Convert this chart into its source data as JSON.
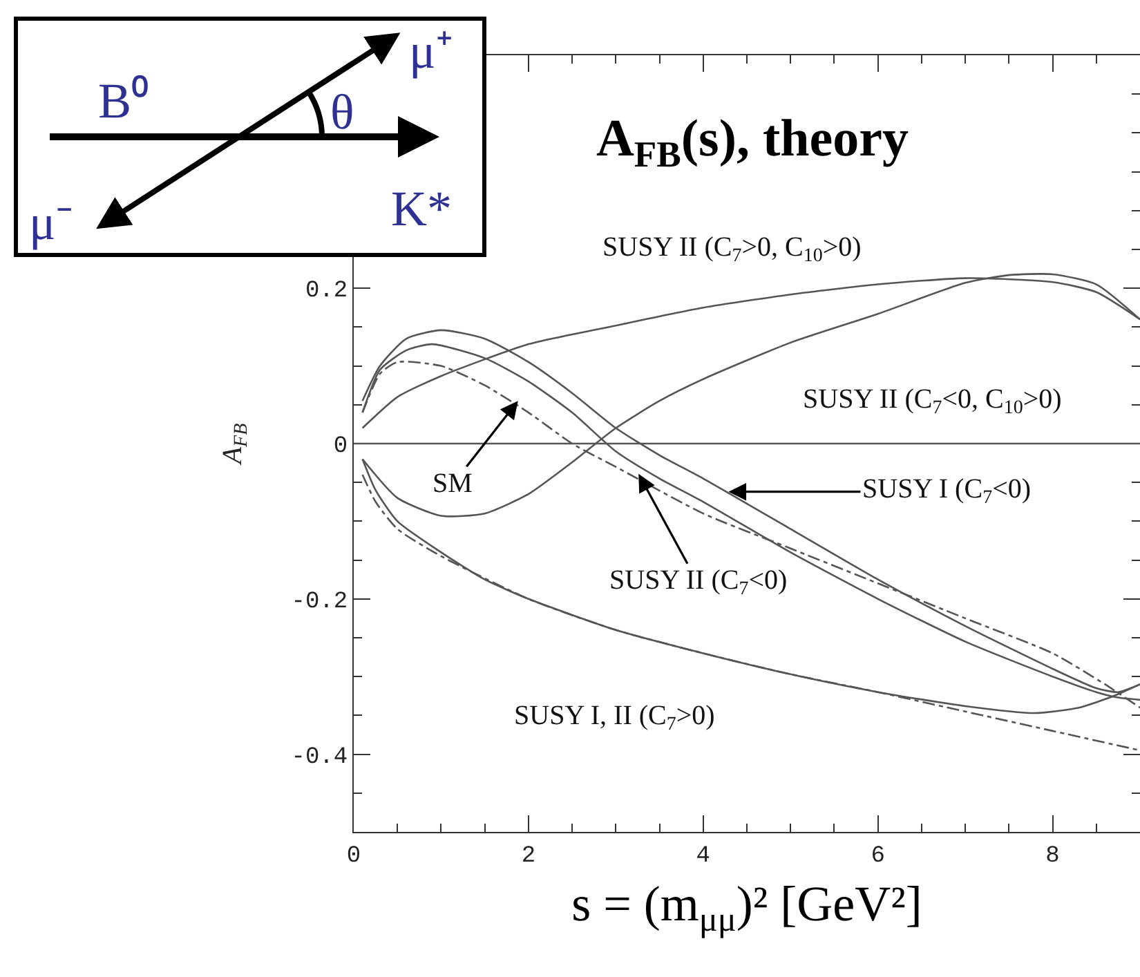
{
  "chart_data": {
    "type": "line",
    "title": "A$_{FB}$(s), theory",
    "xlabel": "s = (m$_{μμ}$)² [GeV²]",
    "ylabel": "A$_{FB}$",
    "xlim": [
      0,
      9
    ],
    "ylim": [
      -0.5,
      0.5
    ],
    "xticks": [
      0,
      {
        "value": 0.5,
        "label": null
      },
      {
        "value": 1,
        "label": null
      },
      {
        "value": 1.5,
        "label": null
      },
      2,
      {
        "value": 2.5,
        "label": null
      },
      {
        "value": 3,
        "label": null
      },
      {
        "value": 3.5,
        "label": null
      },
      4,
      {
        "value": 4.5,
        "label": null
      },
      {
        "value": 5,
        "label": null
      },
      {
        "value": 5.5,
        "label": null
      },
      6,
      {
        "value": 6.5,
        "label": null
      },
      {
        "value": 7,
        "label": null
      },
      {
        "value": 7.5,
        "label": null
      },
      8,
      {
        "value": 8.5,
        "label": null
      }
    ],
    "yticks": [
      {
        "value": -0.45,
        "label": null
      },
      -0.4,
      {
        "value": -0.35,
        "label": null
      },
      {
        "value": -0.3,
        "label": null
      },
      {
        "value": -0.25,
        "label": null
      },
      -0.2,
      {
        "value": -0.15,
        "label": null
      },
      {
        "value": -0.1,
        "label": null
      },
      {
        "value": -0.05,
        "label": null
      },
      0,
      {
        "value": 0.05,
        "label": null
      },
      {
        "value": 0.1,
        "label": null
      },
      {
        "value": 0.15,
        "label": null
      },
      0.2,
      {
        "value": 0.25,
        "label": null
      },
      {
        "value": 0.3,
        "label": null
      },
      {
        "value": 0.35,
        "label": null
      },
      {
        "value": 0.4,
        "label": null
      },
      {
        "value": 0.45,
        "label": null
      }
    ],
    "grid": false,
    "ref_lines": [
      {
        "axis": "y",
        "value": 0,
        "color": "#555555",
        "line_style": "solid"
      }
    ],
    "series": [
      {
        "color": "#555555",
        "line_style": "solid",
        "x": [
          0.1,
          0.5,
          1,
          2,
          3,
          4,
          5,
          6,
          7,
          8,
          8.5,
          9
        ],
        "values": [
          0.02,
          0.06,
          0.087,
          0.128,
          0.152,
          0.175,
          0.192,
          0.205,
          0.213,
          0.208,
          0.195,
          0.16
        ]
      },
      {
        "color": "#555555",
        "line_style": "solid",
        "x": [
          0.1,
          0.5,
          1,
          1.5,
          2,
          2.5,
          3,
          3.5,
          4,
          5,
          6,
          7,
          7.5,
          8,
          8.5,
          9
        ],
        "values": [
          -0.02,
          -0.07,
          -0.093,
          -0.09,
          -0.065,
          -0.024,
          0.02,
          0.055,
          0.083,
          0.13,
          0.167,
          0.207,
          0.217,
          0.218,
          0.205,
          0.16
        ]
      },
      {
        "color": "#555555",
        "line_style": "solid",
        "x": [
          0.1,
          0.3,
          0.6,
          1,
          1.5,
          2,
          2.5,
          3,
          3.5,
          4,
          5,
          6,
          7,
          8,
          8.5,
          8.75,
          9
        ],
        "values": [
          0.055,
          0.1,
          0.135,
          0.146,
          0.135,
          0.105,
          0.065,
          0.02,
          -0.015,
          -0.045,
          -0.11,
          -0.175,
          -0.235,
          -0.29,
          -0.315,
          -0.32,
          -0.31
        ]
      },
      {
        "color": "#555555",
        "line_style": "solid",
        "x": [
          0.1,
          0.3,
          0.6,
          0.9,
          1.5,
          2,
          2.5,
          3,
          3.5,
          4,
          5,
          6,
          7,
          8,
          8.5,
          8.75,
          9
        ],
        "values": [
          0.04,
          0.095,
          0.12,
          0.128,
          0.11,
          0.08,
          0.04,
          -0.01,
          -0.045,
          -0.075,
          -0.14,
          -0.2,
          -0.255,
          -0.3,
          -0.32,
          -0.327,
          -0.33
        ]
      },
      {
        "color": "#555555",
        "line_style": "dashed",
        "x": [
          0.1,
          0.3,
          0.5,
          1,
          1.5,
          2,
          2.5,
          3,
          4,
          5,
          6,
          7,
          8,
          8.6,
          9
        ],
        "values": [
          0.04,
          0.09,
          0.105,
          0.1,
          0.075,
          0.04,
          0,
          -0.03,
          -0.09,
          -0.135,
          -0.18,
          -0.225,
          -0.27,
          -0.31,
          -0.34
        ]
      },
      {
        "color": "#555555",
        "line_style": "solid",
        "x": [
          0.1,
          0.25,
          0.5,
          1,
          1.5,
          2,
          3,
          4,
          5,
          6,
          7,
          7.8,
          8.3,
          8.7,
          9
        ],
        "values": [
          -0.02,
          -0.06,
          -0.1,
          -0.14,
          -0.175,
          -0.2,
          -0.24,
          -0.27,
          -0.297,
          -0.32,
          -0.338,
          -0.347,
          -0.34,
          -0.325,
          -0.31
        ]
      },
      {
        "color": "#555555",
        "line_style": "dashed",
        "x": [
          0.1,
          0.25,
          0.5,
          1,
          2,
          3,
          4,
          5,
          6,
          7,
          8,
          9
        ],
        "values": [
          -0.04,
          -0.075,
          -0.11,
          -0.145,
          -0.2,
          -0.24,
          -0.27,
          -0.297,
          -0.32,
          -0.345,
          -0.37,
          -0.395
        ]
      }
    ],
    "annotations": [
      "SUSY II (C$_{7}$>0, C$_{10}$>0)",
      "SUSY II (C$_{7}$<0, C$_{10}$>0)",
      {
        "text": "SM",
        "x": 1.88,
        "y": 0.055
      },
      {
        "text": "SUSY I (C$_{7}$<0)",
        "x": 4.29,
        "y": -0.062
      },
      {
        "text": "SUSY II (C$_{7}$<0)",
        "x": 3.26,
        "y": -0.039
      },
      "SUSY I, II (C$_{7}$>0)",
      "μ⁺",
      "B⁰",
      "θ",
      "μ⁻",
      "K*"
    ]
  }
}
